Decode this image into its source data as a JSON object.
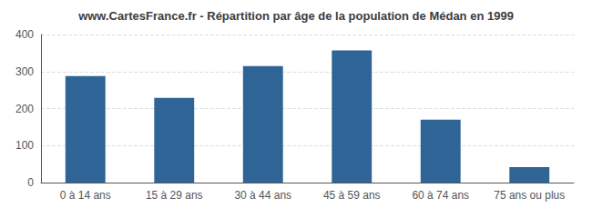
{
  "chart_data": {
    "type": "bar",
    "title": "www.CartesFrance.fr - Répartition par âge de la population de Médan en 1999",
    "categories": [
      "0 à 14 ans",
      "15 à 29 ans",
      "30 à 44 ans",
      "45 à 59 ans",
      "60 à 74 ans",
      "75 ans ou plus"
    ],
    "values": [
      288,
      229,
      315,
      357,
      170,
      42
    ],
    "color": "#2e6496",
    "ylim": [
      0,
      400
    ],
    "yticks": [
      0,
      100,
      200,
      300,
      400
    ],
    "grid": true
  }
}
